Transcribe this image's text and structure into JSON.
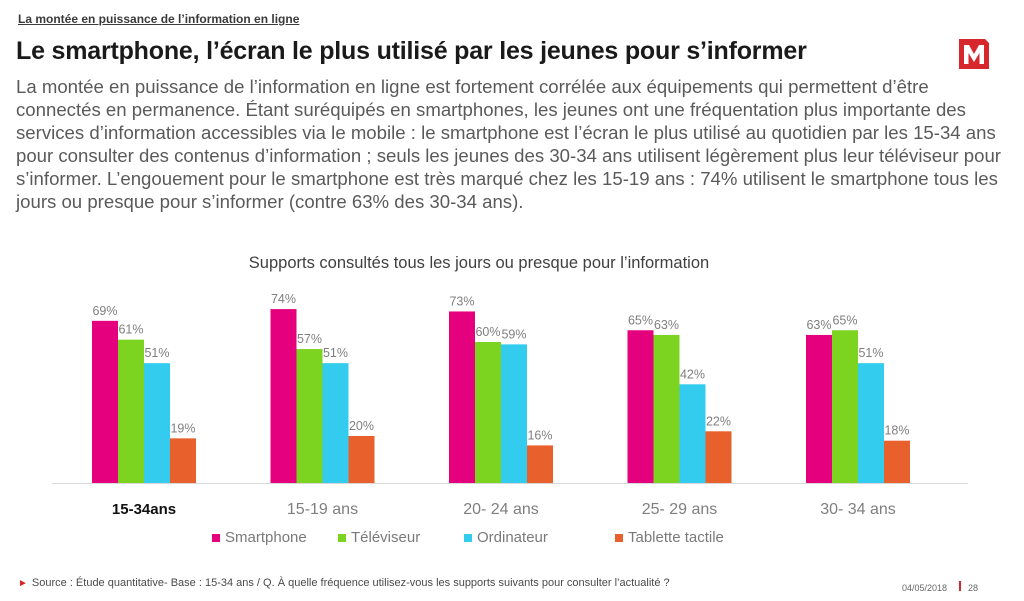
{
  "header": {
    "breadcrumb": "La montée en puissance de l’information en ligne",
    "title": "Le smartphone, l’écran le plus utilisé par les jeunes pour s’informer",
    "logo_letter": "M"
  },
  "intro": "La montée en puissance de l’information en ligne est fortement corrélée aux équipements qui permettent d’être connectés en permanence. Étant suréquipés en smartphones, les jeunes ont une fréquentation plus importante des services d’information accessibles via le mobile : le smartphone est l’écran le plus utilisé au quotidien par les 15-34 ans pour consulter des contenus d’information ; seuls les jeunes des 30-34 ans utilisent légèrement plus leur téléviseur pour s’informer. L’engouement pour le smartphone est très marqué chez les 15-19 ans : 74% utilisent le smartphone tous les jours ou presque pour s’informer (contre 63% des 30-34 ans).",
  "chart_data": {
    "type": "bar",
    "title": "Supports consultés tous les jours ou presque pour l’information",
    "categories": [
      "15-34ans",
      "15-19 ans",
      "20- 24 ans",
      "25- 29 ans",
      "30- 34 ans"
    ],
    "bold_category": "15-34ans",
    "series": [
      {
        "name": "Smartphone",
        "color": "#e5007e",
        "values": [
          69,
          74,
          73,
          65,
          63
        ],
        "labels": [
          "69%",
          "74%",
          "73%",
          "65%",
          "63%"
        ]
      },
      {
        "name": "Téléviseur",
        "color": "#7cd320",
        "values": [
          61,
          57,
          60,
          63,
          65
        ],
        "labels": [
          "61%",
          "57%",
          "60%",
          "63%",
          "65%"
        ]
      },
      {
        "name": "Ordinateur",
        "color": "#33ccee",
        "values": [
          51,
          51,
          59,
          42,
          51
        ],
        "labels": [
          "51%",
          "51%",
          "59%",
          "42%",
          "51%"
        ]
      },
      {
        "name": "Tablette tactile",
        "color": "#e8602c",
        "values": [
          19,
          20,
          16,
          22,
          18
        ],
        "labels": [
          "19%",
          "20%",
          "16%",
          "22%",
          "18%"
        ]
      }
    ],
    "ylim": [
      0,
      80
    ],
    "xlabel": "",
    "ylabel": "",
    "grid": false,
    "legend": "bottom"
  },
  "footer": {
    "source": "Source : Étude quantitative- Base : 15-34 ans / Q. À quelle fréquence utilisez-vous les supports suivants pour consulter l’actualité ?",
    "date": "04/05/2018",
    "page": "28"
  }
}
